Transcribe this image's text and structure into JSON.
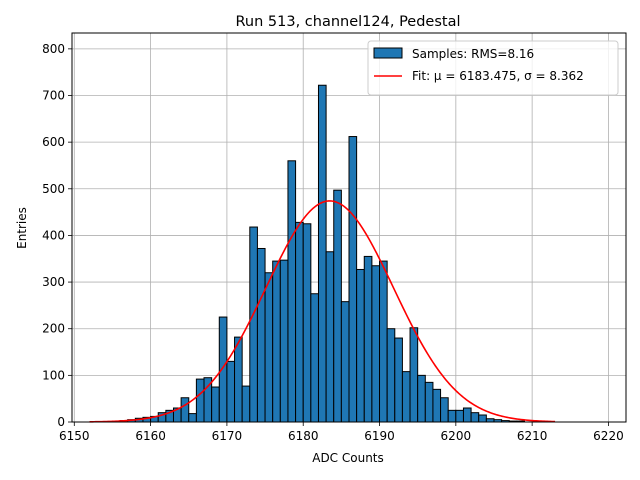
{
  "chart_data": {
    "type": "bar",
    "title": "Run 513, channel124, Pedestal",
    "xlabel": "ADC Counts",
    "ylabel": "Entries",
    "xlim": [
      6149.7,
      6222.3
    ],
    "ylim": [
      0,
      834
    ],
    "xticks": [
      6150,
      6160,
      6170,
      6180,
      6190,
      6200,
      6210,
      6220
    ],
    "yticks": [
      0,
      100,
      200,
      300,
      400,
      500,
      600,
      700,
      800
    ],
    "grid": true,
    "legend_position": "top-right",
    "bar_color": "#1f77b4",
    "fit_color": "#ff0000",
    "histogram": {
      "name": "Samples: RMS=8.16",
      "bin_start": 6155,
      "bin_width": 1,
      "values": [
        2,
        3,
        5,
        8,
        10,
        12,
        20,
        25,
        30,
        52,
        18,
        92,
        95,
        75,
        225,
        130,
        182,
        77,
        418,
        372,
        320,
        345,
        347,
        560,
        428,
        425,
        275,
        722,
        365,
        497,
        258,
        612,
        327,
        355,
        335,
        345,
        200,
        180,
        108,
        202,
        100,
        85,
        70,
        52,
        25,
        25,
        30,
        20,
        15,
        7,
        5,
        3,
        2,
        2
      ]
    },
    "fit": {
      "name": "Fit: μ = 6183.475, σ = 8.362",
      "mu": 6183.475,
      "sigma": 8.362,
      "amplitude": 474,
      "x_range": [
        6152,
        6213
      ]
    }
  }
}
